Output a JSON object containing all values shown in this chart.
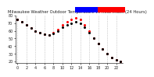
{
  "title": "Milwaukee Weather Outdoor Temperature vs Heat Index (24 Hours)",
  "hours": [
    0,
    1,
    2,
    3,
    4,
    5,
    6,
    7,
    8,
    9,
    10,
    11,
    12,
    13,
    14,
    15,
    16,
    17,
    18,
    19,
    20,
    21,
    22,
    23
  ],
  "temp": [
    75,
    72,
    68,
    64,
    60,
    57,
    55,
    54,
    56,
    60,
    65,
    68,
    70,
    72,
    70,
    65,
    58,
    50,
    43,
    36,
    30,
    25,
    22,
    20
  ],
  "heat": [
    75,
    72,
    68,
    64,
    60,
    57,
    55,
    54,
    57,
    62,
    68,
    72,
    75,
    77,
    75,
    68,
    60,
    50,
    43,
    36,
    30,
    25,
    22,
    20
  ],
  "temp_color": "#000000",
  "heat_color": "#ff0000",
  "bg_color": "#ffffff",
  "grid_color": "#aaaaaa",
  "legend_temp_color": "#0000ff",
  "legend_heat_color": "#ff0000",
  "ylim": [
    18,
    80
  ],
  "xlim_min": -0.5,
  "xlim_max": 23.5,
  "tick_fontsize": 3.5,
  "title_fontsize": 3.8
}
